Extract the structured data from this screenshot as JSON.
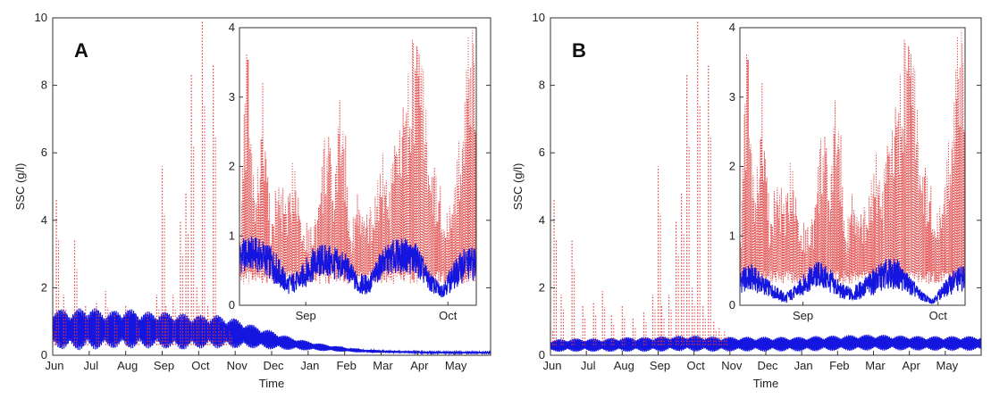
{
  "chart_data": [
    {
      "type": "line",
      "panel_letter": "A",
      "xlabel": "Time",
      "ylabel": "SSC (g/l)",
      "ylim": [
        0,
        10
      ],
      "yticks": [
        0,
        2,
        4,
        6,
        8,
        10
      ],
      "x_ticks": [
        "Jun",
        "Jul",
        "Aug",
        "Sep",
        "Oct",
        "Nov",
        "Dec",
        "Jan",
        "Feb",
        "Mar",
        "Apr",
        "May"
      ],
      "series": [
        {
          "color": "#e03a3a",
          "style": "dotted",
          "months": [
            0,
            0.1,
            0.3,
            0.6,
            0.9,
            1.2,
            1.45,
            1.7,
            2.0,
            2.3,
            2.6,
            2.85,
            3.0,
            3.1,
            3.3,
            3.5,
            3.65,
            3.8,
            3.95,
            4.1,
            4.25,
            4.4,
            4.55,
            4.7,
            4.85
          ],
          "values": [
            1.0,
            4.6,
            1.8,
            3.4,
            1.5,
            1.6,
            1.9,
            1.2,
            1.5,
            1.1,
            1.3,
            1.8,
            5.6,
            1.5,
            1.8,
            4.0,
            4.8,
            8.3,
            2.0,
            9.9,
            1.5,
            8.6,
            1.0,
            0.8,
            0.7
          ]
        },
        {
          "color": "#1515e0",
          "style": "solid",
          "months": [
            0,
            0.5,
            1,
            1.5,
            2,
            2.5,
            3,
            3.5,
            4,
            4.5,
            5,
            5.5,
            6,
            6.5,
            7,
            7.5,
            8,
            8.5,
            9,
            9.5,
            10,
            10.5,
            11,
            11.5,
            12
          ],
          "mean": [
            0.8,
            0.75,
            0.8,
            0.75,
            0.8,
            0.75,
            0.75,
            0.7,
            0.7,
            0.7,
            0.65,
            0.55,
            0.45,
            0.35,
            0.28,
            0.22,
            0.17,
            0.13,
            0.11,
            0.1,
            0.09,
            0.08,
            0.08,
            0.08,
            0.08
          ],
          "amplitude": [
            0.6,
            0.6,
            0.65,
            0.55,
            0.6,
            0.55,
            0.55,
            0.55,
            0.5,
            0.5,
            0.45,
            0.35,
            0.28,
            0.2,
            0.14,
            0.1,
            0.07,
            0.05,
            0.04,
            0.03,
            0.03,
            0.02,
            0.02,
            0.02,
            0.02
          ]
        }
      ],
      "inset": {
        "ylim": [
          0,
          4
        ],
        "yticks": [
          0,
          1,
          2,
          3,
          4
        ],
        "x_ticks": [
          "Sep",
          "Oct"
        ],
        "series": [
          {
            "color": "#e03a3a",
            "style": "dotted",
            "values": [
              1.0,
              4.0,
              1.5,
              3.4,
              1.2,
              2.1,
              1.4,
              2.5,
              1.3,
              1.2,
              1.5,
              2.8,
              1.8,
              3.5,
              1.2,
              1.7,
              1.3,
              1.6,
              2.3,
              1.8,
              2.6,
              3.0,
              4.0,
              4.0,
              2.4,
              1.9,
              1.6,
              1.4,
              2.8,
              4.0,
              4.0
            ]
          },
          {
            "color": "#1515e0",
            "style": "solid",
            "mean": [
              0.7,
              0.75,
              0.7,
              0.55,
              0.3,
              0.35,
              0.55,
              0.65,
              0.6,
              0.55,
              0.3,
              0.3,
              0.6,
              0.7,
              0.72,
              0.65,
              0.35,
              0.2,
              0.4,
              0.6,
              0.6
            ],
            "amplitude": [
              0.25,
              0.25,
              0.25,
              0.25,
              0.15,
              0.15,
              0.25,
              0.25,
              0.25,
              0.2,
              0.15,
              0.15,
              0.2,
              0.25,
              0.25,
              0.25,
              0.15,
              0.1,
              0.2,
              0.25,
              0.25
            ]
          }
        ]
      }
    },
    {
      "type": "line",
      "panel_letter": "B",
      "xlabel": "Time",
      "ylabel": "SSC (g/l)",
      "ylim": [
        0,
        10
      ],
      "yticks": [
        0,
        2,
        4,
        6,
        8,
        10
      ],
      "x_ticks": [
        "Jun",
        "Jul",
        "Aug",
        "Sep",
        "Oct",
        "Nov",
        "Dec",
        "Jan",
        "Feb",
        "Mar",
        "Apr",
        "May"
      ],
      "series": [
        {
          "color": "#e03a3a",
          "style": "dotted",
          "months": [
            0,
            0.1,
            0.3,
            0.6,
            0.9,
            1.2,
            1.45,
            1.7,
            2.0,
            2.3,
            2.6,
            2.85,
            3.0,
            3.1,
            3.3,
            3.5,
            3.65,
            3.8,
            3.95,
            4.1,
            4.25,
            4.4,
            4.55,
            4.7,
            4.85
          ],
          "values": [
            1.0,
            4.6,
            1.8,
            3.4,
            1.5,
            1.6,
            1.9,
            1.2,
            1.5,
            1.1,
            1.3,
            1.8,
            5.6,
            1.5,
            1.8,
            4.0,
            4.8,
            8.3,
            2.0,
            9.9,
            1.5,
            8.6,
            1.0,
            0.8,
            0.7
          ]
        },
        {
          "color": "#1515e0",
          "style": "solid",
          "months": [
            0,
            0.5,
            1,
            1.5,
            2,
            2.5,
            3,
            3.5,
            4,
            4.5,
            5,
            5.5,
            6,
            6.5,
            7,
            7.5,
            8,
            8.5,
            9,
            9.5,
            10,
            10.5,
            11,
            11.5,
            12
          ],
          "mean": [
            0.28,
            0.3,
            0.3,
            0.3,
            0.32,
            0.32,
            0.33,
            0.35,
            0.35,
            0.33,
            0.33,
            0.33,
            0.33,
            0.33,
            0.33,
            0.35,
            0.36,
            0.37,
            0.38,
            0.37,
            0.36,
            0.35,
            0.35,
            0.35,
            0.35
          ],
          "amplitude": [
            0.18,
            0.2,
            0.2,
            0.2,
            0.22,
            0.22,
            0.23,
            0.23,
            0.24,
            0.23,
            0.22,
            0.22,
            0.22,
            0.22,
            0.22,
            0.23,
            0.23,
            0.24,
            0.24,
            0.23,
            0.22,
            0.22,
            0.22,
            0.22,
            0.22
          ]
        }
      ],
      "inset": {
        "ylim": [
          0,
          4
        ],
        "yticks": [
          0,
          1,
          2,
          3,
          4
        ],
        "x_ticks": [
          "Sep",
          "Oct"
        ],
        "series": [
          {
            "color": "#e03a3a",
            "style": "dotted",
            "values": [
              1.0,
              4.0,
              1.5,
              3.4,
              1.2,
              2.1,
              1.4,
              2.5,
              1.3,
              1.2,
              1.5,
              2.8,
              1.8,
              3.5,
              1.2,
              1.7,
              1.3,
              1.6,
              2.3,
              1.8,
              2.6,
              3.0,
              4.0,
              4.0,
              2.4,
              1.9,
              1.6,
              1.4,
              2.8,
              4.0,
              4.0
            ]
          },
          {
            "color": "#1515e0",
            "style": "solid",
            "mean": [
              0.35,
              0.4,
              0.3,
              0.2,
              0.1,
              0.2,
              0.35,
              0.45,
              0.35,
              0.2,
              0.15,
              0.25,
              0.35,
              0.45,
              0.45,
              0.3,
              0.15,
              0.05,
              0.2,
              0.35,
              0.4
            ],
            "amplitude": [
              0.18,
              0.2,
              0.15,
              0.1,
              0.08,
              0.1,
              0.18,
              0.2,
              0.18,
              0.12,
              0.1,
              0.15,
              0.2,
              0.22,
              0.22,
              0.15,
              0.08,
              0.04,
              0.1,
              0.18,
              0.2
            ]
          }
        ]
      }
    }
  ]
}
